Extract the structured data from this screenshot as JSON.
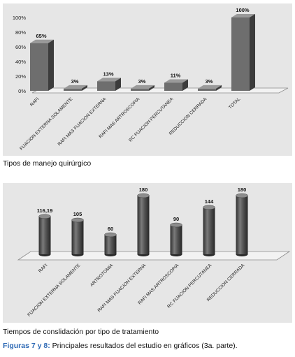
{
  "chart_data": [
    {
      "type": "bar",
      "categories": [
        "RAFI",
        "FIJACION EXTERNA SOLAMENTE",
        "RAFI MAS FIJACION EXTERNA",
        "RAFI MAS ARTROSCOPIA",
        "RC FIJACION PERCUTANEA",
        "REDUCCION CERRADA",
        "TOTAL"
      ],
      "values": [
        65,
        3,
        13,
        3,
        11,
        3,
        100
      ],
      "data_labels": [
        "65%",
        "3%",
        "13%",
        "3%",
        "11%",
        "3%",
        "100%"
      ],
      "yticks": [
        "0%",
        "20%",
        "40%",
        "60%",
        "80%",
        "100%"
      ],
      "ylim": [
        0,
        100
      ],
      "grid": false,
      "caption": "Tipos de manejo quirúrgico"
    },
    {
      "type": "bar",
      "categories": [
        "RAFI",
        "FIJACION EXTERNA SOLAMENTE",
        "ARTROTOMIA",
        "RAFI MAS FIJACION EXTERNA",
        "RAFI MAS ARTROSCOPIA",
        "RC FIJACION PERCUTANEA",
        "REDUCCION CERRADA"
      ],
      "values": [
        116.19,
        105,
        60,
        180,
        90,
        144,
        180
      ],
      "data_labels": [
        "116,19",
        "105",
        "60",
        "180",
        "90",
        "144",
        "180"
      ],
      "ylim": [
        0,
        180
      ],
      "grid": false,
      "caption": "Tiempos de conslidación  por tipo de tratamiento"
    }
  ],
  "figure_caption": {
    "label": "Figuras 7 y 8:",
    "text": " Principales resultados del estudio en gráficos (3a. parte)."
  },
  "colors": {
    "panel_bg": "#e6e6e6",
    "bar_front": "#6e6e6e",
    "bar_side": "#3c3c3c",
    "bar_top": "#9a9a9a",
    "cylinder": "#555555",
    "caption_label": "#2c68b4"
  }
}
